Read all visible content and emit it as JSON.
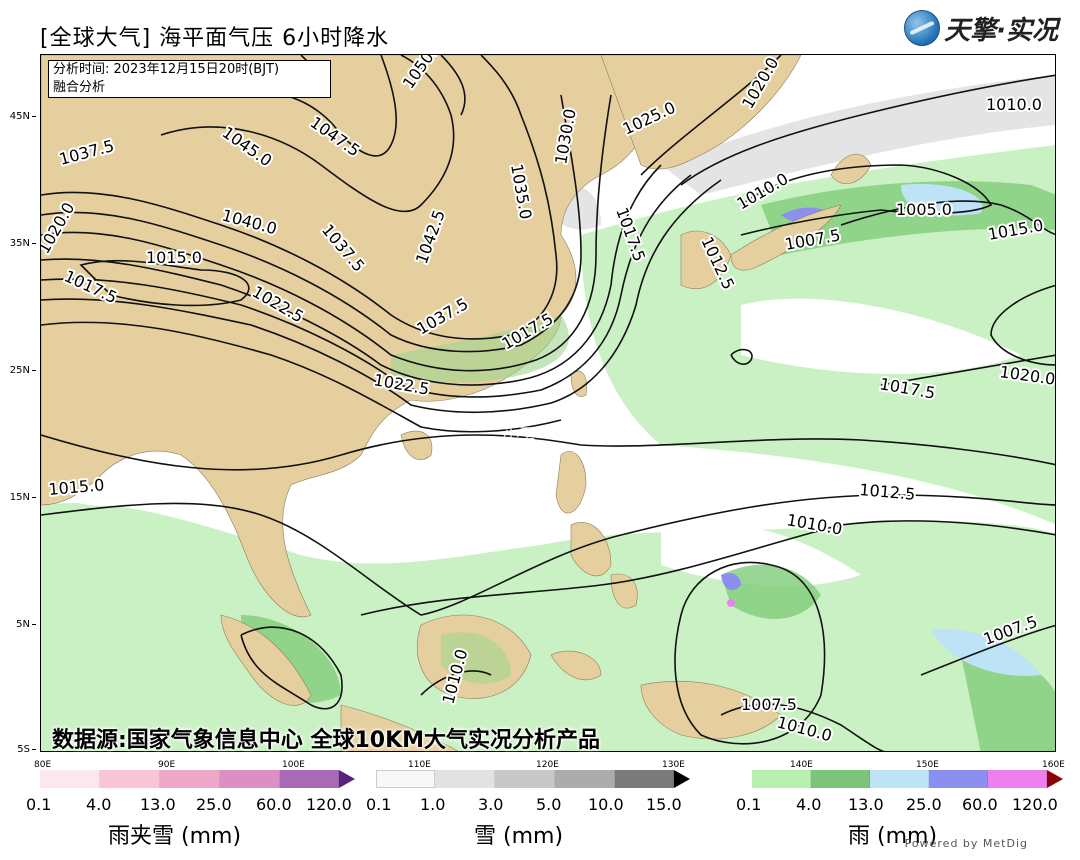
{
  "title": "[全球大气] 海平面气压 6小时降水",
  "logo_text": "天擎·实况",
  "info": {
    "analysis_time": "分析时间: 2023年12月15日20时(BJT)",
    "analysis_type": "融合分析"
  },
  "source_note": "数据源:国家气象信息中心 全球10KM大气实况分析产品",
  "watermark": "小工",
  "lat_labels": [
    "45N",
    "35N",
    "25N",
    "15N",
    "5N",
    "5S"
  ],
  "lon_labels": [
    "80E",
    "90E",
    "100E",
    "110E",
    "120E",
    "130E",
    "140E",
    "150E",
    "160E"
  ],
  "isobar_labels": [
    "1050.0",
    "1045.0",
    "1047.5",
    "1037.5",
    "1040.0",
    "1042.5",
    "1035.0",
    "1030.0",
    "1025.0",
    "1020.0",
    "1010.0",
    "1017.5",
    "1037.5",
    "1015.0",
    "1020.0",
    "1017.5",
    "1022.5",
    "1037.5",
    "1017.5",
    "1022.5",
    "1010.0",
    "1012.5",
    "1005.0",
    "1007.5",
    "1015.0",
    "1020.0",
    "1017.5",
    "1015.0",
    "1012.5",
    "1010.0",
    "1007.5",
    "1010.0",
    "1007.5",
    "1010.0"
  ],
  "colorbars": {
    "sleet": {
      "name": "雨夹雪 (mm)",
      "ticks": [
        "0.1",
        "4.0",
        "13.0",
        "25.0",
        "60.0",
        "120.0"
      ],
      "colors": [
        "#fde7ee",
        "#f8c6d6",
        "#eea8c7",
        "#dc8fc2",
        "#a86ab5"
      ],
      "arrow": "#5a1f80"
    },
    "snow": {
      "name": "雪 (mm)",
      "ticks": [
        "0.1",
        "1.0",
        "3.0",
        "5.0",
        "10.0",
        "15.0"
      ],
      "colors": [
        "#f8f8f8",
        "#e2e2e2",
        "#c8c8c8",
        "#acacac",
        "#7a7a7a"
      ],
      "arrow": "#000000"
    },
    "rain": {
      "name": "雨 (mm)",
      "ticks": [
        "0.1",
        "4.0",
        "13.0",
        "25.0",
        "60.0",
        "120.0"
      ],
      "colors": [
        "#b7f0b0",
        "#7cc47a",
        "#bfe3f6",
        "#8a8ff0",
        "#ee7fee"
      ],
      "arrow": "#8b0000"
    }
  },
  "powered_by": "Powered by MetDig"
}
